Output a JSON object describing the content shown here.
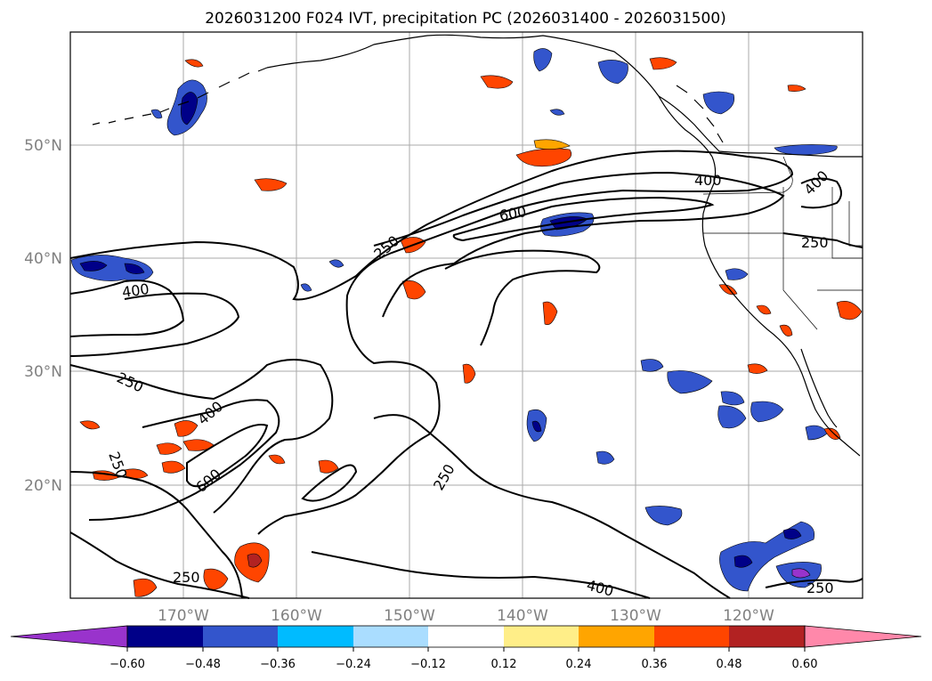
{
  "title": "2026031200 F024 IVT, precipitation PC (2026031400 - 2026031500)",
  "lat_labels": [
    "50°N",
    "40°N",
    "30°N",
    "20°N"
  ],
  "lon_labels": [
    "170°W",
    "160°W",
    "150°W",
    "140°W",
    "130°W",
    "120°W"
  ],
  "colorbar": {
    "ticks": [
      "−0.60",
      "−0.48",
      "−0.36",
      "−0.24",
      "−0.12",
      "0.12",
      "0.24",
      "0.36",
      "0.48",
      "0.60"
    ],
    "colors": {
      "under": "#9933cc",
      "n060": "#000088",
      "n048": "#3355cc",
      "n036": "#00bbff",
      "n024": "#aaddff",
      "n012": "#ffffff",
      "p012": "#ffee88",
      "p024": "#ffa500",
      "p036": "#ff4500",
      "p048": "#b22222",
      "over": "#ff88aa"
    }
  },
  "contour_labels": {
    "c1": "250",
    "c2": "600",
    "c3": "400",
    "c4": "400",
    "c5": "250",
    "c6": "400",
    "c7": "250",
    "c8": "400",
    "c9": "250",
    "c10": "600",
    "c11": "250",
    "c12": "250",
    "c13": "400",
    "c14": "250"
  }
}
